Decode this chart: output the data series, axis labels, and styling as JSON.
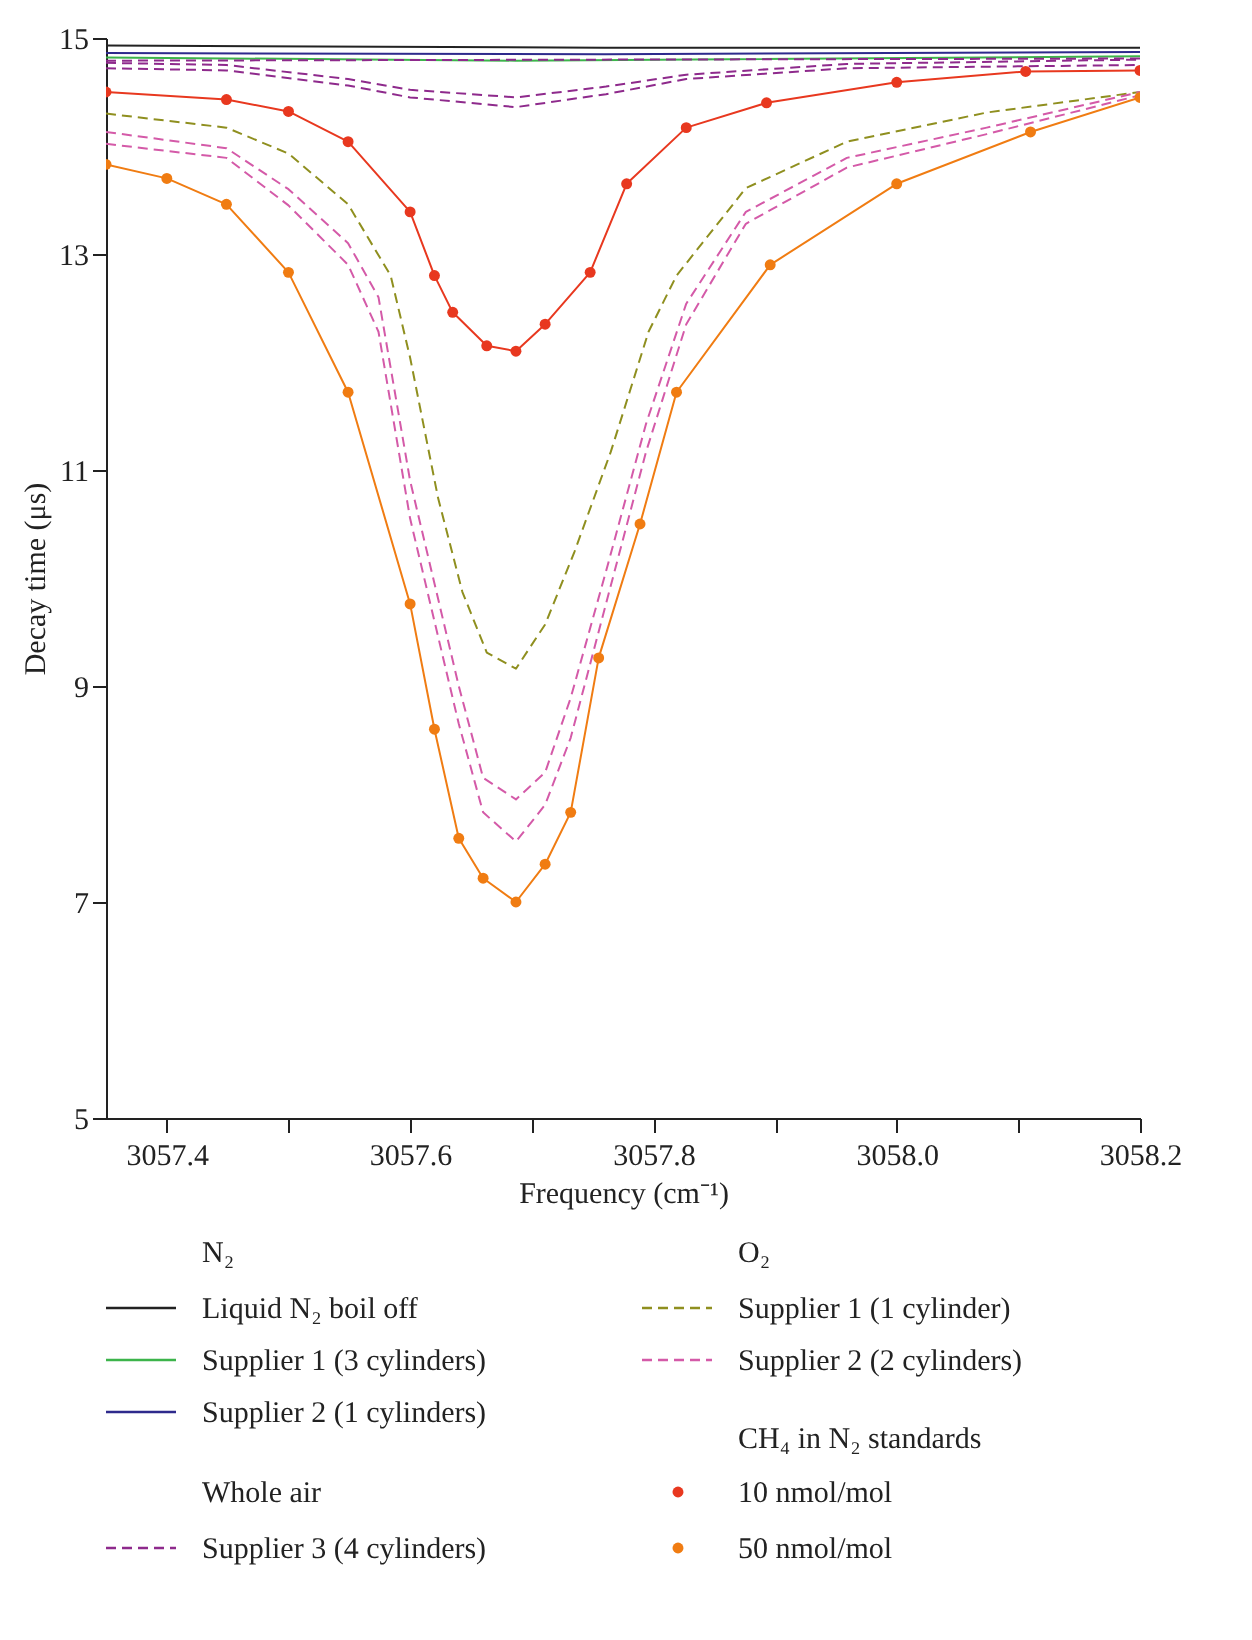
{
  "chart_data": {
    "type": "line",
    "xlabel": "Frequency (cm⁻¹)",
    "ylabel": "Decay time (μs)",
    "xlim": [
      3057.35,
      3058.2
    ],
    "ylim": [
      5,
      15
    ],
    "xticks": [
      {
        "value": 3057.4,
        "label": "3057.4"
      },
      {
        "value": 3057.5,
        "label": null
      },
      {
        "value": 3057.6,
        "label": "3057.6"
      },
      {
        "value": 3057.7,
        "label": null
      },
      {
        "value": 3057.8,
        "label": "3057.8"
      },
      {
        "value": 3057.9,
        "label": null
      },
      {
        "value": 3058.0,
        "label": "3058.0"
      },
      {
        "value": 3058.1,
        "label": null
      },
      {
        "value": 3058.2,
        "label": "3058.2"
      }
    ],
    "yticks": [
      5,
      7,
      9,
      11,
      13,
      15
    ],
    "grid": false,
    "legend": "bottom",
    "annotations": [
      "N₂",
      "Whole air",
      "O₂",
      "CH₄ in N₂ standards"
    ],
    "series": [
      {
        "name": "Liquid N₂ boil off",
        "color": "#222222",
        "line_style": "solid",
        "x": [
          3057.35,
          3057.76,
          3058.2
        ],
        "values": [
          14.93,
          14.91,
          14.91
        ]
      },
      {
        "name": "Supplier 1 (3 cylinders)",
        "color": "#3cb44b",
        "line_style": "solid",
        "x": [
          3057.35,
          3057.687,
          3058.2
        ],
        "values": [
          14.82,
          14.79,
          14.83
        ]
      },
      {
        "name": "Supplier 2 (1 cylinders)",
        "color": "#2e2a8c",
        "line_style": "solid",
        "x": [
          3057.35,
          3057.76,
          3058.2
        ],
        "values": [
          14.86,
          14.85,
          14.87
        ]
      },
      {
        "name": "Supplier 3 (4 cylinders)",
        "color": "#8e2a8c",
        "line_style": "dashed",
        "x": [
          3057.35,
          3058.2
        ],
        "values": [
          14.79,
          14.81
        ]
      },
      {
        "color": "#8e2a8c",
        "line_style": "dashed",
        "x": [
          3057.35,
          3057.449,
          3057.549,
          3057.6,
          3057.687,
          3057.761,
          3057.827,
          3057.959,
          3058.2
        ],
        "values": [
          14.77,
          14.75,
          14.62,
          14.52,
          14.45,
          14.55,
          14.66,
          14.76,
          14.8
        ]
      },
      {
        "color": "#8e2a8c",
        "line_style": "dashed",
        "x": [
          3057.35,
          3057.449,
          3057.549,
          3057.6,
          3057.687,
          3057.761,
          3057.827,
          3057.959,
          3058.2
        ],
        "values": [
          14.72,
          14.7,
          14.56,
          14.45,
          14.36,
          14.48,
          14.62,
          14.72,
          14.75
        ]
      },
      {
        "name": "Supplier 1 (1 cylinder)",
        "color": "#8f8f1f",
        "line_style": "dashed",
        "x": [
          3057.35,
          3057.449,
          3057.5,
          3057.549,
          3057.584,
          3057.6,
          3057.623,
          3057.643,
          3057.663,
          3057.687,
          3057.711,
          3057.735,
          3057.765,
          3057.796,
          3057.819,
          3057.876,
          3057.959,
          3058.074,
          3058.2
        ],
        "values": [
          14.3,
          14.17,
          13.93,
          13.46,
          12.8,
          12.04,
          10.74,
          9.87,
          9.31,
          9.16,
          9.57,
          10.24,
          11.17,
          12.28,
          12.8,
          13.61,
          14.04,
          14.31,
          14.5
        ]
      },
      {
        "name": "Supplier 2 (2 cylinders)",
        "color": "#d45aa8",
        "line_style": "dashed",
        "x": [
          3057.35,
          3057.449,
          3057.5,
          3057.549,
          3057.574,
          3057.6,
          3057.64,
          3057.66,
          3057.687,
          3057.711,
          3057.732,
          3057.761,
          3057.794,
          3057.827,
          3057.876,
          3057.959,
          3058.074,
          3058.2
        ],
        "values": [
          14.13,
          13.98,
          13.6,
          13.1,
          12.6,
          10.9,
          9.0,
          8.15,
          7.95,
          8.2,
          8.89,
          10.06,
          11.43,
          12.54,
          13.39,
          13.89,
          14.17,
          14.5
        ]
      },
      {
        "color": "#d45aa8",
        "line_style": "dashed",
        "x": [
          3057.35,
          3057.449,
          3057.5,
          3057.549,
          3057.574,
          3057.6,
          3057.64,
          3057.66,
          3057.687,
          3057.711,
          3057.732,
          3057.761,
          3057.794,
          3057.827,
          3057.876,
          3057.959,
          3058.074,
          3058.2
        ],
        "values": [
          14.02,
          13.89,
          13.45,
          12.9,
          12.28,
          10.55,
          8.65,
          7.83,
          7.56,
          7.9,
          8.52,
          9.76,
          11.17,
          12.35,
          13.28,
          13.8,
          14.11,
          14.47
        ]
      },
      {
        "name": "10 nmol/mol",
        "color": "#e8381f",
        "marker": "circle",
        "line_style": "solid",
        "x": [
          3057.35,
          3057.449,
          3057.5,
          3057.549,
          3057.6,
          3057.62,
          3057.635,
          3057.663,
          3057.687,
          3057.711,
          3057.748,
          3057.778,
          3057.827,
          3057.893,
          3058.0,
          3058.106,
          3058.2
        ],
        "values": [
          14.5,
          14.43,
          14.32,
          14.04,
          13.39,
          12.8,
          12.46,
          12.15,
          12.1,
          12.35,
          12.83,
          13.65,
          14.17,
          14.4,
          14.59,
          14.69,
          14.7
        ]
      },
      {
        "name": "50 nmol/mol",
        "color": "#f07c12",
        "marker": "circle",
        "line_style": "solid",
        "x": [
          3057.35,
          3057.4,
          3057.449,
          3057.5,
          3057.549,
          3057.6,
          3057.62,
          3057.64,
          3057.66,
          3057.687,
          3057.711,
          3057.732,
          3057.755,
          3057.789,
          3057.819,
          3057.896,
          3058.0,
          3058.11,
          3058.2
        ],
        "values": [
          13.83,
          13.7,
          13.46,
          12.83,
          11.72,
          9.76,
          8.6,
          7.59,
          7.22,
          7.0,
          7.35,
          7.83,
          9.26,
          10.5,
          11.72,
          12.9,
          13.65,
          14.13,
          14.45
        ]
      }
    ]
  }
}
